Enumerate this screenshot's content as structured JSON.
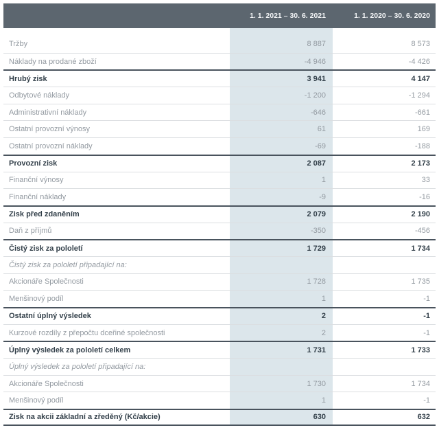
{
  "table": {
    "columns": [
      "1. 1. 2021 – 30. 6. 2021",
      "1. 1. 2020 – 30. 6. 2020"
    ],
    "rows": [
      {
        "label": "Tržby",
        "v2021": "8 887",
        "v2020": "8 573",
        "style": "normal"
      },
      {
        "label": "Náklady na prodané zboží",
        "v2021": "-4 946",
        "v2020": "-4 426",
        "style": "normal"
      },
      {
        "label": "Hrubý zisk",
        "v2021": "3 941",
        "v2020": "4 147",
        "style": "bold"
      },
      {
        "label": "Odbytové náklady",
        "v2021": "-1 200",
        "v2020": "-1 294",
        "style": "normal"
      },
      {
        "label": "Administrativní náklady",
        "v2021": "-646",
        "v2020": "-661",
        "style": "normal"
      },
      {
        "label": "Ostatní provozní výnosy",
        "v2021": "61",
        "v2020": "169",
        "style": "normal"
      },
      {
        "label": "Ostatní provozní náklady",
        "v2021": "-69",
        "v2020": "-188",
        "style": "normal"
      },
      {
        "label": "Provozní zisk",
        "v2021": "2 087",
        "v2020": "2 173",
        "style": "bold"
      },
      {
        "label": "Finanční výnosy",
        "v2021": "1",
        "v2020": "33",
        "style": "normal"
      },
      {
        "label": "Finanční náklady",
        "v2021": "-9",
        "v2020": "-16",
        "style": "normal"
      },
      {
        "label": "Zisk před zdaněním",
        "v2021": "2 079",
        "v2020": "2 190",
        "style": "bold"
      },
      {
        "label": "Daň z příjmů",
        "v2021": "-350",
        "v2020": "-456",
        "style": "normal"
      },
      {
        "label": "Čistý zisk za pololetí",
        "v2021": "1 729",
        "v2020": "1 734",
        "style": "bold"
      },
      {
        "label": "Čistý zisk za pololetí připadající na:",
        "v2021": "",
        "v2020": "",
        "style": "italic"
      },
      {
        "label": "Akcionáře Společnosti",
        "v2021": "1 728",
        "v2020": "1 735",
        "style": "normal"
      },
      {
        "label": "Menšinový podíl",
        "v2021": "1",
        "v2020": "-1",
        "style": "normal"
      },
      {
        "label": "Ostatní úplný výsledek",
        "v2021": "2",
        "v2020": "-1",
        "style": "bold"
      },
      {
        "label": "Kurzové rozdíly z přepočtu dceřiné společnosti",
        "v2021": "2",
        "v2020": "-1",
        "style": "normal"
      },
      {
        "label": "Úplný výsledek za pololetí celkem",
        "v2021": "1 731",
        "v2020": "1 733",
        "style": "bold"
      },
      {
        "label": "Úplný výsledek za pololetí připadající na:",
        "v2021": "",
        "v2020": "",
        "style": "italic"
      },
      {
        "label": "Akcionáře Společnosti",
        "v2021": "1 730",
        "v2020": "1 734",
        "style": "normal"
      },
      {
        "label": "Menšinový podíl",
        "v2021": "1",
        "v2020": "-1",
        "style": "normal"
      },
      {
        "label": "Zisk na akcii základní a zředěný (Kč/akcie)",
        "v2021": "630",
        "v2020": "632",
        "style": "final"
      }
    ]
  },
  "colors": {
    "header_bg": "#5c666f",
    "header_text": "#f2f4f6",
    "column_band": "#dce6eb",
    "text_normal": "#939aa1",
    "text_bold": "#323f49",
    "divider_light": "#dbdee1",
    "divider_dark": "#49535d"
  }
}
